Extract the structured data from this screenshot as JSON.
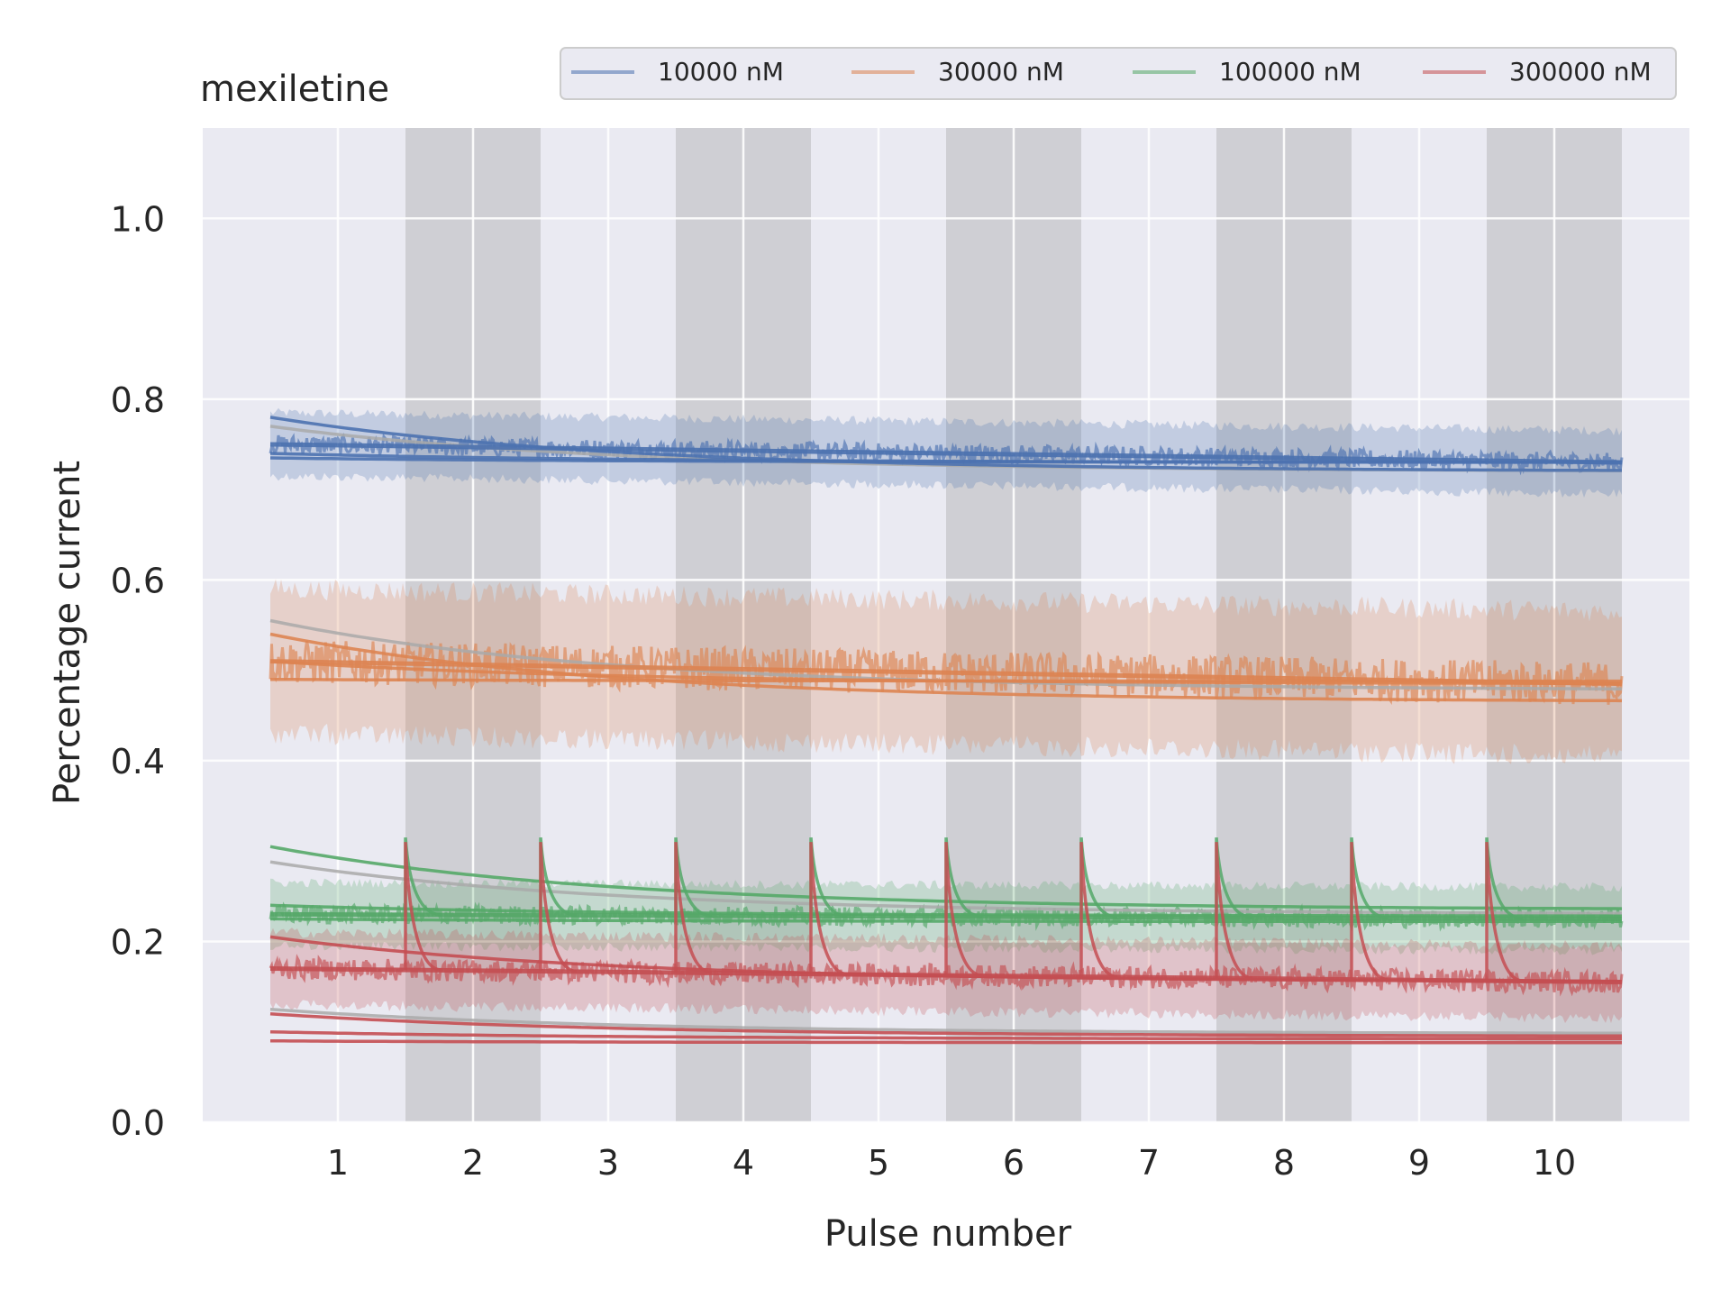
{
  "chart_data": {
    "type": "line",
    "title": "mexiletine",
    "xlabel": "Pulse number",
    "ylabel": "Percentage current",
    "xlim": [
      0,
      11
    ],
    "ylim": [
      0.0,
      1.1
    ],
    "x_ticks": [
      1,
      2,
      3,
      4,
      5,
      6,
      7,
      8,
      9,
      10
    ],
    "y_ticks": [
      0.0,
      0.2,
      0.4,
      0.6,
      0.8,
      1.0
    ],
    "grid": true,
    "legend_position": "top",
    "shaded_pulses": [
      [
        1.5,
        2.5
      ],
      [
        3.5,
        4.5
      ],
      [
        5.5,
        6.5
      ],
      [
        7.5,
        8.5
      ],
      [
        9.5,
        10.5
      ]
    ],
    "colors": {
      "background": "#eaeaf2",
      "shade": "#cfcfd4",
      "grid": "#ffffff",
      "fit": "#a9a9a9"
    },
    "series": [
      {
        "name": "10000 nM",
        "color": "#4c72b0",
        "observed_start": 0.75,
        "observed_end": 0.73,
        "band_halfwidth": 0.035,
        "fit_lines": [
          {
            "start": 0.78,
            "end": 0.72
          },
          {
            "start": 0.74,
            "end": 0.73
          },
          {
            "start": 0.735,
            "end": 0.73
          }
        ],
        "spike_peak": 0.0,
        "grey_fit": {
          "start": 0.77,
          "end": 0.72
        }
      },
      {
        "name": "30000 nM",
        "color": "#dd8452",
        "observed_start": 0.51,
        "observed_end": 0.485,
        "band_halfwidth": 0.08,
        "fit_lines": [
          {
            "start": 0.54,
            "end": 0.465
          },
          {
            "start": 0.51,
            "end": 0.485
          },
          {
            "start": 0.49,
            "end": 0.488
          }
        ],
        "spike_peak": 0.0,
        "grey_fit": {
          "start": 0.555,
          "end": 0.478
        }
      },
      {
        "name": "100000 nM",
        "color": "#55a868",
        "observed_start": 0.23,
        "observed_end": 0.225,
        "band_halfwidth": 0.035,
        "fit_lines": [
          {
            "start": 0.305,
            "end": 0.235
          },
          {
            "start": 0.24,
            "end": 0.228
          },
          {
            "start": 0.225,
            "end": 0.222
          }
        ],
        "spike_peak": 0.315,
        "grey_fit": {
          "start": 0.288,
          "end": 0.23
        }
      },
      {
        "name": "300000 nM",
        "color": "#c44e52",
        "observed_start": 0.17,
        "observed_end": 0.155,
        "band_halfwidth": 0.04,
        "fit_lines": [
          {
            "start": 0.205,
            "end": 0.155
          },
          {
            "start": 0.12,
            "end": 0.095
          },
          {
            "start": 0.1,
            "end": 0.092
          },
          {
            "start": 0.09,
            "end": 0.088
          }
        ],
        "spike_peak": 0.31,
        "grey_fit": {
          "start": 0.125,
          "end": 0.098
        }
      }
    ]
  }
}
